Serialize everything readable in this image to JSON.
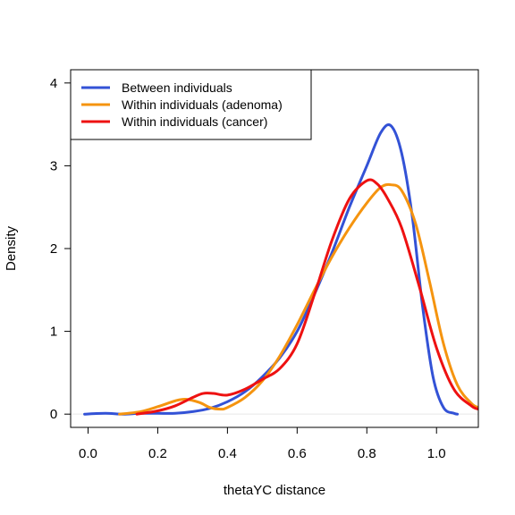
{
  "chart_data": {
    "type": "line",
    "title": "",
    "xlabel": "thetaYC distance",
    "ylabel": "Density",
    "xlim": [
      -0.05,
      1.12
    ],
    "ylim": [
      -0.16,
      4.16
    ],
    "xticks": [
      0.0,
      0.2,
      0.4,
      0.6,
      0.8,
      1.0
    ],
    "xtick_labels": [
      "0.0",
      "0.2",
      "0.4",
      "0.6",
      "0.8",
      "1.0"
    ],
    "yticks": [
      0,
      1,
      2,
      3,
      4
    ],
    "ytick_labels": [
      "0",
      "1",
      "2",
      "3",
      "4"
    ],
    "grid": false,
    "baseline": 0,
    "legend_position": "top-left",
    "series": [
      {
        "name": "Between individuals",
        "color": "#3352d6",
        "x": [
          -0.01,
          0.05,
          0.1,
          0.15,
          0.2,
          0.25,
          0.3,
          0.35,
          0.4,
          0.45,
          0.5,
          0.55,
          0.6,
          0.65,
          0.7,
          0.75,
          0.8,
          0.84,
          0.87,
          0.9,
          0.93,
          0.96,
          0.99,
          1.02,
          1.05,
          1.06
        ],
        "y": [
          0.0,
          0.01,
          0.0,
          0.01,
          0.01,
          0.01,
          0.03,
          0.07,
          0.15,
          0.27,
          0.45,
          0.68,
          1.0,
          1.45,
          1.95,
          2.5,
          3.0,
          3.4,
          3.48,
          3.15,
          2.4,
          1.3,
          0.45,
          0.08,
          0.01,
          0.0
        ]
      },
      {
        "name": "Within individuals (adenoma)",
        "color": "#f5940f",
        "x": [
          0.09,
          0.15,
          0.2,
          0.25,
          0.28,
          0.32,
          0.35,
          0.38,
          0.4,
          0.45,
          0.5,
          0.55,
          0.6,
          0.65,
          0.7,
          0.75,
          0.8,
          0.84,
          0.87,
          0.9,
          0.94,
          0.98,
          1.02,
          1.06,
          1.1,
          1.12
        ],
        "y": [
          0.0,
          0.03,
          0.09,
          0.16,
          0.18,
          0.14,
          0.08,
          0.06,
          0.08,
          0.2,
          0.4,
          0.7,
          1.08,
          1.5,
          1.9,
          2.25,
          2.55,
          2.74,
          2.77,
          2.7,
          2.3,
          1.6,
          0.85,
          0.35,
          0.13,
          0.08
        ]
      },
      {
        "name": "Within individuals (cancer)",
        "color": "#ee1111",
        "x": [
          0.14,
          0.2,
          0.25,
          0.3,
          0.33,
          0.36,
          0.4,
          0.45,
          0.5,
          0.55,
          0.6,
          0.65,
          0.7,
          0.75,
          0.8,
          0.83,
          0.86,
          0.9,
          0.95,
          1.0,
          1.05,
          1.1,
          1.12
        ],
        "y": [
          0.0,
          0.04,
          0.1,
          0.2,
          0.25,
          0.25,
          0.23,
          0.3,
          0.42,
          0.55,
          0.85,
          1.45,
          2.1,
          2.6,
          2.82,
          2.78,
          2.6,
          2.25,
          1.55,
          0.8,
          0.3,
          0.1,
          0.06
        ]
      }
    ]
  }
}
